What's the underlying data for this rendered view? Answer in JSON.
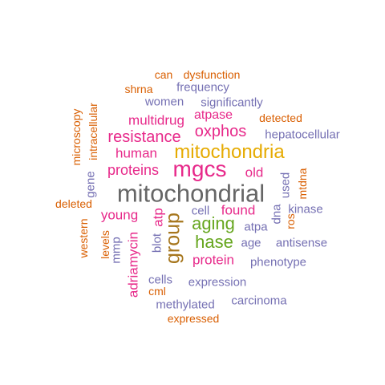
{
  "colors": {
    "orange": "#D95F02",
    "purple": "#7570B3",
    "magenta": "#E7298A",
    "green": "#66A61E",
    "gold": "#E6AB02",
    "brown": "#A6761D",
    "gray": "#666666"
  },
  "words": {
    "mitochondrial": "mitochondrial",
    "mgcs": "mgcs",
    "mitochondria": "mitochondria",
    "group": "group",
    "aging": "aging",
    "hase": "hase",
    "resistance": "resistance",
    "oxphos": "oxphos",
    "proteins": "proteins",
    "human": "human",
    "young": "young",
    "protein": "protein",
    "multidrug": "multidrug",
    "atpase": "atpase",
    "old": "old",
    "found": "found",
    "adriamycin": "adriamycin",
    "atp": "atp",
    "frequency": "frequency",
    "women": "women",
    "significantly": "significantly",
    "hepatocellular": "hepatocellular",
    "kinase": "kinase",
    "antisense": "antisense",
    "age": "age",
    "phenotype": "phenotype",
    "expression": "expression",
    "carcinoma": "carcinoma",
    "methylated": "methylated",
    "cells": "cells",
    "cell": "cell",
    "atpa": "atpa",
    "blot": "blot",
    "mmp": "mmp",
    "dna": "dna",
    "used": "used",
    "gene": "gene",
    "can": "can",
    "dysfunction": "dysfunction",
    "shrna": "shrna",
    "detected": "detected",
    "microscopy": "microscopy",
    "intracellular": "intracellular",
    "mtdna": "mtdna",
    "deleted": "deleted",
    "western": "western",
    "levels": "levels",
    "ros": "ros",
    "cml": "cml",
    "expressed": "expressed"
  }
}
